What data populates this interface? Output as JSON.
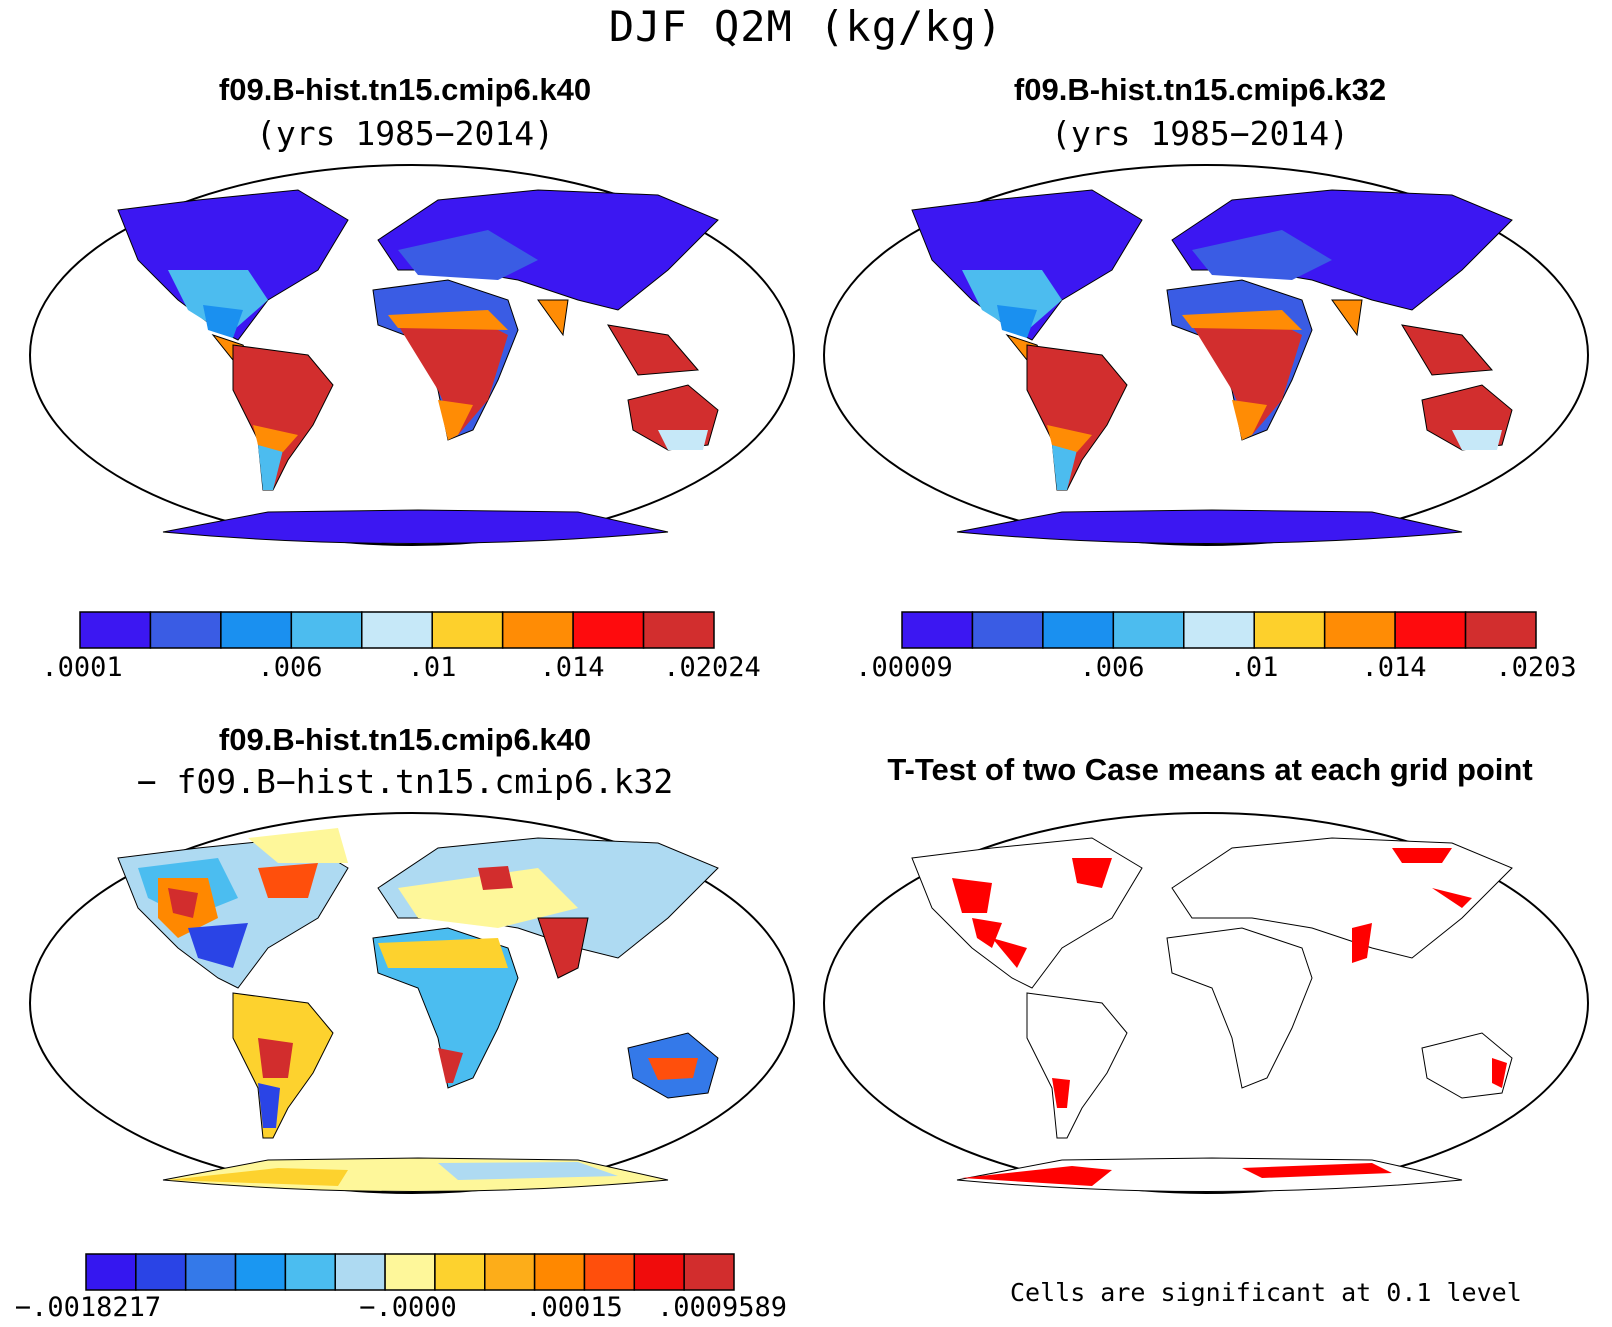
{
  "title": "DJF Q2M (kg/kg)",
  "panels": {
    "top_left": {
      "case": "f09.B-hist.tn15.cmip6.k40",
      "years": "(yrs 1985−2014)"
    },
    "top_right": {
      "case": "f09.B-hist.tn15.cmip6.k32",
      "years": "(yrs 1985−2014)"
    },
    "bottom_left": {
      "case": "f09.B-hist.tn15.cmip6.k40",
      "minus_case": "− f09.B−hist.tn15.cmip6.k32"
    },
    "bottom_right": {
      "title": "T-Test of two Case means at each grid point",
      "note": "Cells are significant at 0.1 level"
    }
  },
  "colorbars": {
    "top_left": {
      "colors": [
        "#3c17f2",
        "#3a5ce4",
        "#1a90f0",
        "#4cbcef",
        "#c6e8f8",
        "#fdd02c",
        "#ff8c05",
        "#fe0b0d",
        "#d22e2e"
      ],
      "labels": [
        ".0001",
        ".006",
        ".01",
        ".014",
        ".02024"
      ]
    },
    "top_right": {
      "colors": [
        "#3c17f2",
        "#3a5ce4",
        "#1a90f0",
        "#4cbcef",
        "#c6e8f8",
        "#fdd02c",
        "#ff8c05",
        "#fe0b0d",
        "#d22e2e"
      ],
      "labels": [
        ".00009",
        ".006",
        ".01",
        ".014",
        ".0203"
      ]
    },
    "bottom_left": {
      "colors": [
        "#3517f0",
        "#2a44e6",
        "#3479e9",
        "#1a97f2",
        "#4bbdf0",
        "#aedaf2",
        "#fef79a",
        "#fdd22e",
        "#fdad19",
        "#ff8800",
        "#ff4f0c",
        "#f00c0c",
        "#d22d2d"
      ],
      "labels": [
        "−.0018217",
        "−.0000",
        ".00015",
        ".0009589"
      ]
    }
  },
  "colors": {
    "land_low": "#3c17f2",
    "land_high": "#d22e2e",
    "significant": "#ff0000",
    "outline": "#000000"
  }
}
